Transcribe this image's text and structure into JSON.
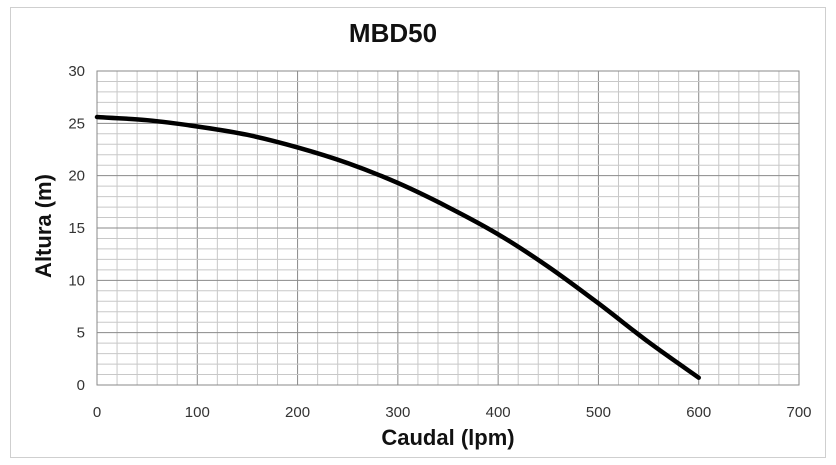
{
  "chart_data": {
    "type": "line",
    "title": "MBD50",
    "xlabel": "Caudal (lpm)",
    "ylabel": "Altura (m)",
    "xlim": [
      0,
      700
    ],
    "ylim": [
      0,
      30
    ],
    "x_ticks": [
      "0",
      "100",
      "200",
      "300",
      "400",
      "500",
      "600",
      "700"
    ],
    "y_ticks": [
      "0",
      "5",
      "10",
      "15",
      "20",
      "25",
      "30"
    ],
    "grid": true,
    "legend": "none",
    "series": [
      {
        "color": "#000000",
        "x": [
          0,
          50,
          100,
          150,
          200,
          250,
          300,
          350,
          400,
          450,
          500,
          550,
          600
        ],
        "y": [
          25.6,
          25.3,
          24.7,
          23.9,
          22.7,
          21.2,
          19.3,
          17.0,
          14.4,
          11.3,
          7.8,
          4.1,
          0.7
        ]
      }
    ]
  }
}
